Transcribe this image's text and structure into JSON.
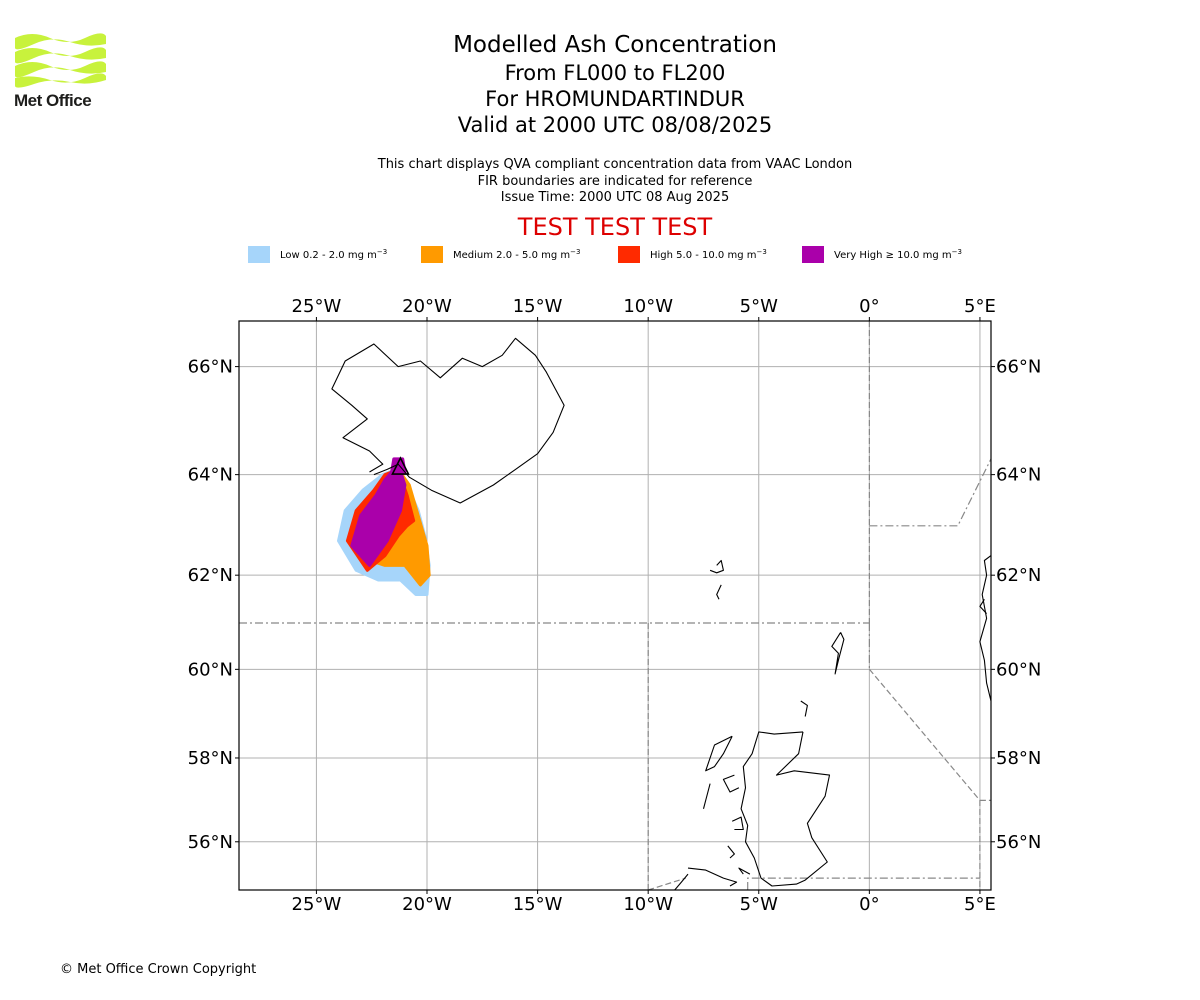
{
  "logo": {
    "name": "Met Office",
    "wave_color": "#c8f23c"
  },
  "title": {
    "line1": "Modelled Ash Concentration",
    "line2": "From FL000 to FL200",
    "line3": "For HROMUNDARTINDUR",
    "line4": "Valid at 2000 UTC 08/08/2025"
  },
  "subtitle": {
    "line1": "This chart displays QVA compliant concentration data from VAAC London",
    "line2": "FIR boundaries are indicated for reference",
    "line3": "Issue Time: 2000 UTC 08 Aug 2025"
  },
  "test_banner": "TEST TEST TEST",
  "legend": [
    {
      "label": "Low 0.2 - 2.0 mg m",
      "unit_exp": "−3",
      "color": "#a6d5fa"
    },
    {
      "label": "Medium 2.0 - 5.0 mg m",
      "unit_exp": "−3",
      "color": "#ff9a00"
    },
    {
      "label": "High 5.0 - 10.0 mg m",
      "unit_exp": "−3",
      "color": "#ff2a00"
    },
    {
      "label": "Very High  ≥  10.0 mg m",
      "unit_exp": "−3",
      "color": "#aa00aa"
    }
  ],
  "map": {
    "lon_range": [
      -28.5,
      5.5
    ],
    "lat_range": [
      54.8,
      66.8
    ],
    "lon_ticks": [
      {
        "value": -25,
        "label": "25°W"
      },
      {
        "value": -20,
        "label": "20°W"
      },
      {
        "value": -15,
        "label": "15°W"
      },
      {
        "value": -10,
        "label": "10°W"
      },
      {
        "value": -5,
        "label": "5°W"
      },
      {
        "value": 0,
        "label": "0°"
      },
      {
        "value": 5,
        "label": "5°E"
      }
    ],
    "lat_ticks": [
      {
        "value": 56,
        "label": "56°N"
      },
      {
        "value": 58,
        "label": "58°N"
      },
      {
        "value": 60,
        "label": "60°N"
      },
      {
        "value": 62,
        "label": "62°N"
      },
      {
        "value": 64,
        "label": "64°N"
      },
      {
        "value": 66,
        "label": "66°N"
      }
    ],
    "grid": true,
    "volcano": {
      "name": "HROMUNDARTINDUR",
      "lon": -21.2,
      "lat": 64.05
    },
    "ash_polygons": [
      {
        "level": "low",
        "color": "#a6d5fa",
        "points": [
          [
            -21.4,
            64.1
          ],
          [
            -20.9,
            63.8
          ],
          [
            -20.4,
            63.3
          ],
          [
            -20.1,
            62.8
          ],
          [
            -19.9,
            62.2
          ],
          [
            -20.0,
            61.6
          ],
          [
            -20.5,
            61.6
          ],
          [
            -21.2,
            61.9
          ],
          [
            -22.2,
            61.9
          ],
          [
            -23.2,
            62.1
          ],
          [
            -24.0,
            62.7
          ],
          [
            -23.7,
            63.3
          ],
          [
            -22.9,
            63.7
          ],
          [
            -22.0,
            64.0
          ]
        ]
      },
      {
        "level": "medium",
        "color": "#ff9a00",
        "points": [
          [
            -21.3,
            64.1
          ],
          [
            -20.8,
            63.8
          ],
          [
            -20.4,
            63.2
          ],
          [
            -20.0,
            62.6
          ],
          [
            -19.9,
            62.0
          ],
          [
            -20.3,
            61.8
          ],
          [
            -21.0,
            62.2
          ],
          [
            -21.9,
            62.2
          ],
          [
            -22.6,
            62.3
          ],
          [
            -23.2,
            62.7
          ],
          [
            -22.9,
            63.3
          ],
          [
            -22.2,
            63.7
          ]
        ]
      },
      {
        "level": "high",
        "color": "#ff2a00",
        "points": [
          [
            -21.3,
            64.1
          ],
          [
            -20.9,
            63.6
          ],
          [
            -20.6,
            63.1
          ],
          [
            -20.9,
            63.0
          ],
          [
            -21.3,
            62.8
          ],
          [
            -21.9,
            62.4
          ],
          [
            -22.7,
            62.1
          ],
          [
            -23.6,
            62.7
          ],
          [
            -23.2,
            63.3
          ],
          [
            -22.4,
            63.7
          ],
          [
            -21.9,
            64.0
          ]
        ]
      },
      {
        "level": "very-high",
        "color": "#aa00aa",
        "points": [
          [
            -21.3,
            64.2
          ],
          [
            -21.0,
            63.8
          ],
          [
            -21.2,
            63.3
          ],
          [
            -21.8,
            62.7
          ],
          [
            -22.6,
            62.2
          ],
          [
            -23.4,
            62.6
          ],
          [
            -23.0,
            63.2
          ],
          [
            -22.3,
            63.6
          ],
          [
            -21.9,
            63.9
          ]
        ]
      },
      {
        "level": "very-high",
        "color": "#aa00aa",
        "points": [
          [
            -21.5,
            64.3
          ],
          [
            -21.1,
            64.3
          ],
          [
            -21.0,
            64.05
          ],
          [
            -21.6,
            64.05
          ]
        ]
      }
    ],
    "fir_boundaries": [
      {
        "style": "dashdot",
        "points": [
          [
            -28.5,
            61.0
          ],
          [
            0,
            61.0
          ]
        ]
      },
      {
        "style": "dashed",
        "points": [
          [
            -10,
            54.8
          ],
          [
            -10,
            61.0
          ]
        ]
      },
      {
        "style": "dashed",
        "points": [
          [
            0,
            66.8
          ],
          [
            0,
            61.0
          ]
        ]
      },
      {
        "style": "dashdot",
        "points": [
          [
            0,
            61.0
          ],
          [
            0,
            60.0
          ]
        ]
      },
      {
        "style": "dashed",
        "points": [
          [
            0,
            60.0
          ],
          [
            5.0,
            57.0
          ],
          [
            5.0,
            54.8
          ]
        ]
      },
      {
        "style": "dashdot",
        "points": [
          [
            0,
            63.0
          ],
          [
            4.0,
            63.0
          ],
          [
            5.5,
            64.3
          ]
        ]
      },
      {
        "style": "dashdot",
        "points": [
          [
            -5.5,
            54.8
          ],
          [
            -5.5,
            55.1
          ],
          [
            5.0,
            55.1
          ]
        ]
      },
      {
        "style": "dashed",
        "points": [
          [
            -10,
            54.8
          ],
          [
            -8.3,
            55.1
          ]
        ]
      },
      {
        "style": "dashed",
        "points": [
          [
            5.0,
            57.0
          ],
          [
            5.5,
            57.0
          ]
        ]
      }
    ],
    "coastlines": [
      [
        [
          -22.4,
          64.0
        ],
        [
          -21.8,
          64.1
        ],
        [
          -21.3,
          64.2
        ],
        [
          -20.8,
          63.95
        ],
        [
          -19.8,
          63.7
        ],
        [
          -18.5,
          63.45
        ],
        [
          -17.0,
          63.8
        ],
        [
          -16.0,
          64.1
        ],
        [
          -15.0,
          64.4
        ],
        [
          -14.3,
          64.8
        ],
        [
          -13.8,
          65.3
        ],
        [
          -14.2,
          65.6
        ],
        [
          -14.6,
          65.9
        ],
        [
          -15.1,
          66.2
        ],
        [
          -16.0,
          66.5
        ],
        [
          -16.6,
          66.2
        ],
        [
          -17.5,
          66.0
        ],
        [
          -18.4,
          66.15
        ],
        [
          -19.4,
          65.8
        ],
        [
          -20.3,
          66.1
        ],
        [
          -21.3,
          66.0
        ],
        [
          -22.4,
          66.4
        ],
        [
          -23.7,
          66.1
        ],
        [
          -24.3,
          65.6
        ],
        [
          -23.4,
          65.3
        ],
        [
          -22.7,
          65.05
        ],
        [
          -23.8,
          64.7
        ],
        [
          -22.6,
          64.45
        ],
        [
          -22.0,
          64.2
        ],
        [
          -22.6,
          64.05
        ]
      ],
      [
        [
          -6.9,
          62.2
        ],
        [
          -6.7,
          62.3
        ],
        [
          -6.6,
          62.1
        ],
        [
          -6.9,
          62.05
        ],
        [
          -7.2,
          62.1
        ]
      ],
      [
        [
          -6.7,
          61.8
        ],
        [
          -6.9,
          61.6
        ],
        [
          -6.8,
          61.5
        ]
      ],
      [
        [
          -1.3,
          60.8
        ],
        [
          -1.15,
          60.65
        ],
        [
          -1.4,
          60.2
        ],
        [
          -1.55,
          59.9
        ],
        [
          -1.4,
          60.35
        ],
        [
          -1.7,
          60.5
        ],
        [
          -1.3,
          60.8
        ]
      ],
      [
        [
          -3.1,
          59.3
        ],
        [
          -2.8,
          59.2
        ],
        [
          -2.9,
          58.95
        ]
      ],
      [
        [
          -3.0,
          58.6
        ],
        [
          -4.3,
          58.55
        ],
        [
          -5.0,
          58.6
        ],
        [
          -5.3,
          58.1
        ],
        [
          -5.7,
          57.8
        ],
        [
          -5.6,
          57.3
        ],
        [
          -5.8,
          56.8
        ],
        [
          -5.5,
          56.4
        ],
        [
          -5.6,
          56.0
        ],
        [
          -5.2,
          55.6
        ],
        [
          -4.9,
          55.1
        ],
        [
          -4.4,
          54.9
        ],
        [
          -3.3,
          54.95
        ],
        [
          -2.9,
          55.05
        ],
        [
          -1.9,
          55.5
        ],
        [
          -2.6,
          56.1
        ],
        [
          -2.8,
          56.45
        ],
        [
          -2.0,
          57.1
        ],
        [
          -1.8,
          57.6
        ],
        [
          -3.4,
          57.7
        ],
        [
          -4.2,
          57.6
        ],
        [
          -3.2,
          58.1
        ],
        [
          -3.0,
          58.6
        ]
      ],
      [
        [
          -6.2,
          58.5
        ],
        [
          -7.0,
          58.3
        ],
        [
          -7.4,
          57.7
        ],
        [
          -7.0,
          57.8
        ],
        [
          -6.6,
          58.1
        ],
        [
          -6.2,
          58.5
        ]
      ],
      [
        [
          -6.1,
          57.6
        ],
        [
          -6.6,
          57.5
        ],
        [
          -6.3,
          57.2
        ],
        [
          -5.9,
          57.3
        ]
      ],
      [
        [
          -7.2,
          57.4
        ],
        [
          -7.4,
          57.0
        ],
        [
          -7.5,
          56.8
        ]
      ],
      [
        [
          -6.2,
          56.5
        ],
        [
          -5.8,
          56.6
        ],
        [
          -5.7,
          56.3
        ],
        [
          -6.1,
          56.3
        ]
      ],
      [
        [
          -6.4,
          55.9
        ],
        [
          -6.1,
          55.7
        ],
        [
          -6.3,
          55.6
        ]
      ],
      [
        [
          -5.7,
          55.2
        ],
        [
          -5.9,
          55.35
        ],
        [
          -5.4,
          55.2
        ]
      ],
      [
        [
          -8.2,
          55.35
        ],
        [
          -7.4,
          55.3
        ],
        [
          -6.6,
          55.1
        ],
        [
          -6.0,
          55.0
        ],
        [
          -6.3,
          54.9
        ]
      ],
      [
        [
          -8.8,
          54.8
        ],
        [
          -8.5,
          55.0
        ],
        [
          -8.2,
          55.2
        ]
      ],
      [
        [
          5.5,
          62.4
        ],
        [
          5.2,
          62.3
        ],
        [
          5.3,
          62.0
        ],
        [
          5.1,
          61.6
        ],
        [
          5.3,
          61.1
        ],
        [
          5.0,
          60.6
        ],
        [
          5.2,
          60.2
        ],
        [
          5.3,
          59.7
        ],
        [
          5.5,
          59.3
        ]
      ],
      [
        [
          5.2,
          61.5
        ],
        [
          5.0,
          61.35
        ],
        [
          5.3,
          61.2
        ]
      ]
    ]
  },
  "copyright": "© Met Office Crown Copyright"
}
